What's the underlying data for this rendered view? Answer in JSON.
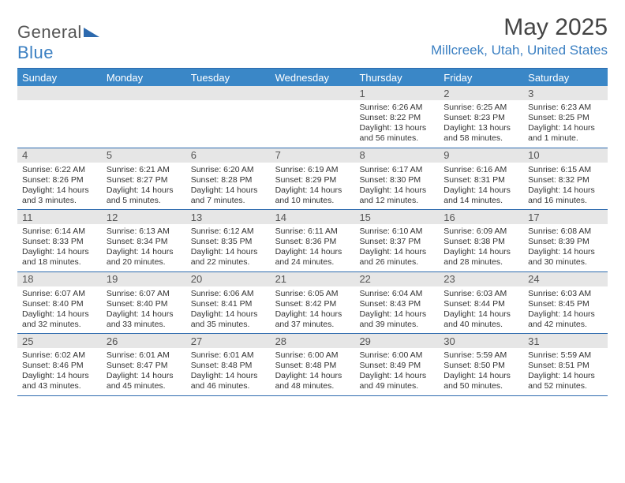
{
  "brand": {
    "part1": "General",
    "part2": "Blue"
  },
  "title": "May 2025",
  "location": "Millcreek, Utah, United States",
  "colors": {
    "header_bar": "#3a87c7",
    "rule": "#2d6aae",
    "daynum_bg": "#e6e6e6",
    "location_color": "#3a7fc2"
  },
  "dow": [
    "Sunday",
    "Monday",
    "Tuesday",
    "Wednesday",
    "Thursday",
    "Friday",
    "Saturday"
  ],
  "weeks": [
    [
      null,
      null,
      null,
      null,
      {
        "n": "1",
        "sr": "Sunrise: 6:26 AM",
        "ss": "Sunset: 8:22 PM",
        "dl": "Daylight: 13 hours and 56 minutes."
      },
      {
        "n": "2",
        "sr": "Sunrise: 6:25 AM",
        "ss": "Sunset: 8:23 PM",
        "dl": "Daylight: 13 hours and 58 minutes."
      },
      {
        "n": "3",
        "sr": "Sunrise: 6:23 AM",
        "ss": "Sunset: 8:25 PM",
        "dl": "Daylight: 14 hours and 1 minute."
      }
    ],
    [
      {
        "n": "4",
        "sr": "Sunrise: 6:22 AM",
        "ss": "Sunset: 8:26 PM",
        "dl": "Daylight: 14 hours and 3 minutes."
      },
      {
        "n": "5",
        "sr": "Sunrise: 6:21 AM",
        "ss": "Sunset: 8:27 PM",
        "dl": "Daylight: 14 hours and 5 minutes."
      },
      {
        "n": "6",
        "sr": "Sunrise: 6:20 AM",
        "ss": "Sunset: 8:28 PM",
        "dl": "Daylight: 14 hours and 7 minutes."
      },
      {
        "n": "7",
        "sr": "Sunrise: 6:19 AM",
        "ss": "Sunset: 8:29 PM",
        "dl": "Daylight: 14 hours and 10 minutes."
      },
      {
        "n": "8",
        "sr": "Sunrise: 6:17 AM",
        "ss": "Sunset: 8:30 PM",
        "dl": "Daylight: 14 hours and 12 minutes."
      },
      {
        "n": "9",
        "sr": "Sunrise: 6:16 AM",
        "ss": "Sunset: 8:31 PM",
        "dl": "Daylight: 14 hours and 14 minutes."
      },
      {
        "n": "10",
        "sr": "Sunrise: 6:15 AM",
        "ss": "Sunset: 8:32 PM",
        "dl": "Daylight: 14 hours and 16 minutes."
      }
    ],
    [
      {
        "n": "11",
        "sr": "Sunrise: 6:14 AM",
        "ss": "Sunset: 8:33 PM",
        "dl": "Daylight: 14 hours and 18 minutes."
      },
      {
        "n": "12",
        "sr": "Sunrise: 6:13 AM",
        "ss": "Sunset: 8:34 PM",
        "dl": "Daylight: 14 hours and 20 minutes."
      },
      {
        "n": "13",
        "sr": "Sunrise: 6:12 AM",
        "ss": "Sunset: 8:35 PM",
        "dl": "Daylight: 14 hours and 22 minutes."
      },
      {
        "n": "14",
        "sr": "Sunrise: 6:11 AM",
        "ss": "Sunset: 8:36 PM",
        "dl": "Daylight: 14 hours and 24 minutes."
      },
      {
        "n": "15",
        "sr": "Sunrise: 6:10 AM",
        "ss": "Sunset: 8:37 PM",
        "dl": "Daylight: 14 hours and 26 minutes."
      },
      {
        "n": "16",
        "sr": "Sunrise: 6:09 AM",
        "ss": "Sunset: 8:38 PM",
        "dl": "Daylight: 14 hours and 28 minutes."
      },
      {
        "n": "17",
        "sr": "Sunrise: 6:08 AM",
        "ss": "Sunset: 8:39 PM",
        "dl": "Daylight: 14 hours and 30 minutes."
      }
    ],
    [
      {
        "n": "18",
        "sr": "Sunrise: 6:07 AM",
        "ss": "Sunset: 8:40 PM",
        "dl": "Daylight: 14 hours and 32 minutes."
      },
      {
        "n": "19",
        "sr": "Sunrise: 6:07 AM",
        "ss": "Sunset: 8:40 PM",
        "dl": "Daylight: 14 hours and 33 minutes."
      },
      {
        "n": "20",
        "sr": "Sunrise: 6:06 AM",
        "ss": "Sunset: 8:41 PM",
        "dl": "Daylight: 14 hours and 35 minutes."
      },
      {
        "n": "21",
        "sr": "Sunrise: 6:05 AM",
        "ss": "Sunset: 8:42 PM",
        "dl": "Daylight: 14 hours and 37 minutes."
      },
      {
        "n": "22",
        "sr": "Sunrise: 6:04 AM",
        "ss": "Sunset: 8:43 PM",
        "dl": "Daylight: 14 hours and 39 minutes."
      },
      {
        "n": "23",
        "sr": "Sunrise: 6:03 AM",
        "ss": "Sunset: 8:44 PM",
        "dl": "Daylight: 14 hours and 40 minutes."
      },
      {
        "n": "24",
        "sr": "Sunrise: 6:03 AM",
        "ss": "Sunset: 8:45 PM",
        "dl": "Daylight: 14 hours and 42 minutes."
      }
    ],
    [
      {
        "n": "25",
        "sr": "Sunrise: 6:02 AM",
        "ss": "Sunset: 8:46 PM",
        "dl": "Daylight: 14 hours and 43 minutes."
      },
      {
        "n": "26",
        "sr": "Sunrise: 6:01 AM",
        "ss": "Sunset: 8:47 PM",
        "dl": "Daylight: 14 hours and 45 minutes."
      },
      {
        "n": "27",
        "sr": "Sunrise: 6:01 AM",
        "ss": "Sunset: 8:48 PM",
        "dl": "Daylight: 14 hours and 46 minutes."
      },
      {
        "n": "28",
        "sr": "Sunrise: 6:00 AM",
        "ss": "Sunset: 8:48 PM",
        "dl": "Daylight: 14 hours and 48 minutes."
      },
      {
        "n": "29",
        "sr": "Sunrise: 6:00 AM",
        "ss": "Sunset: 8:49 PM",
        "dl": "Daylight: 14 hours and 49 minutes."
      },
      {
        "n": "30",
        "sr": "Sunrise: 5:59 AM",
        "ss": "Sunset: 8:50 PM",
        "dl": "Daylight: 14 hours and 50 minutes."
      },
      {
        "n": "31",
        "sr": "Sunrise: 5:59 AM",
        "ss": "Sunset: 8:51 PM",
        "dl": "Daylight: 14 hours and 52 minutes."
      }
    ]
  ]
}
